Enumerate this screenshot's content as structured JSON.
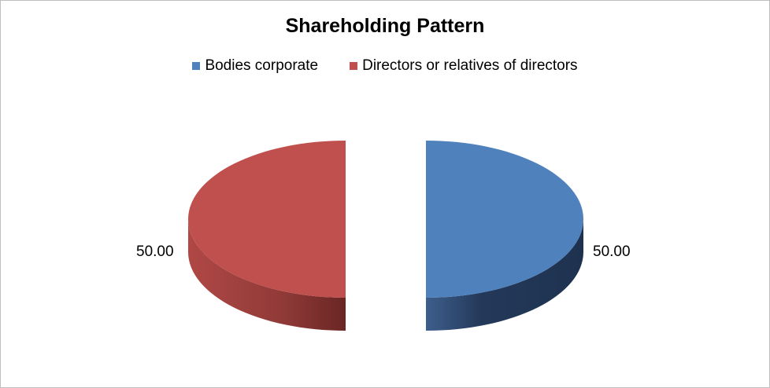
{
  "chart_data": {
    "type": "pie",
    "title": "Shareholding Pattern",
    "style": "3d-exploded",
    "legend_position": "top",
    "slices": [
      {
        "name": "Bodies corporate",
        "value": 50.0,
        "label": "50.00",
        "color": "#4f81bd"
      },
      {
        "name": "Directors or relatives of directors",
        "value": 50.0,
        "label": "50.00",
        "color": "#c0504d"
      }
    ]
  }
}
